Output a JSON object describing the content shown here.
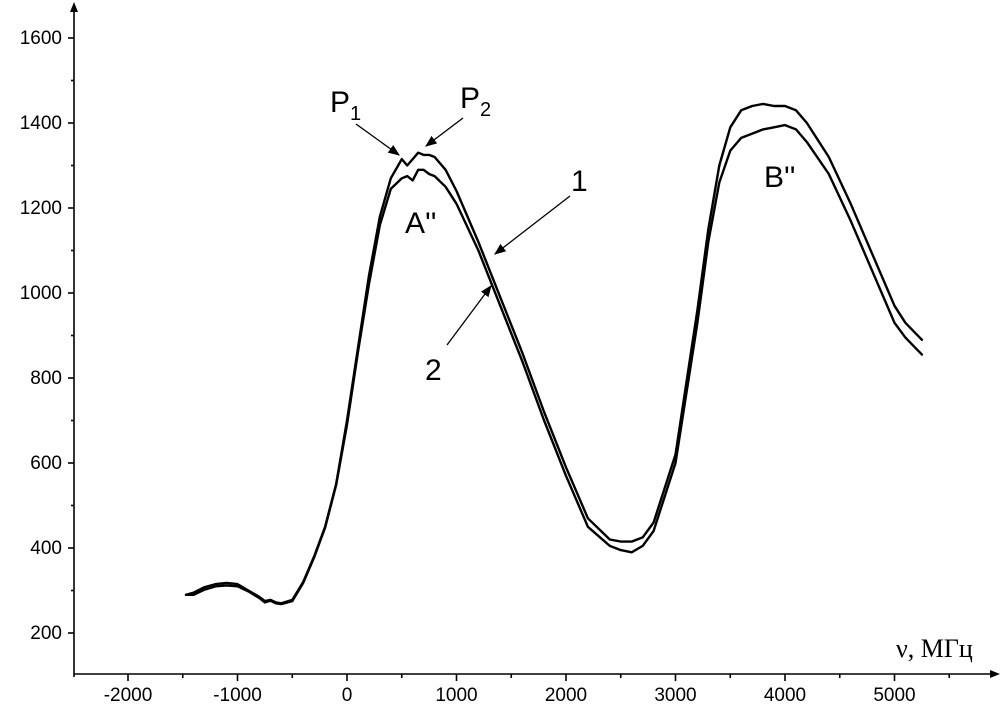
{
  "chart_data": {
    "type": "line",
    "title": "",
    "xlabel": "ν, МГц",
    "ylabel": "",
    "xlim": [
      -2450,
      5950
    ],
    "ylim": [
      105,
      1640
    ],
    "x_ticks": [
      -2000,
      -1000,
      0,
      1000,
      2000,
      3000,
      4000,
      5000
    ],
    "y_ticks": [
      200,
      400,
      600,
      800,
      1000,
      1200,
      1400,
      1600
    ],
    "x_tick_labels": [
      "-2000",
      "-1000",
      "0",
      "1000",
      "2000",
      "3000",
      "4000",
      "5000"
    ],
    "y_tick_labels": [
      "200",
      "400",
      "600",
      "800",
      "1000",
      "1200",
      "1400",
      "1600"
    ],
    "grid": false,
    "series": [
      {
        "name": "1",
        "color": "#000000",
        "x": [
          -1470,
          -1400,
          -1300,
          -1200,
          -1100,
          -1000,
          -900,
          -800,
          -750,
          -700,
          -650,
          -600,
          -500,
          -400,
          -300,
          -200,
          -100,
          0,
          100,
          200,
          300,
          400,
          500,
          550,
          600,
          650,
          700,
          750,
          800,
          900,
          1000,
          1200,
          1400,
          1600,
          1800,
          2000,
          2200,
          2400,
          2500,
          2600,
          2700,
          2800,
          3000,
          3200,
          3300,
          3400,
          3500,
          3600,
          3700,
          3800,
          3900,
          4000,
          4100,
          4200,
          4400,
          4600,
          4800,
          5000,
          5100,
          5250
        ],
        "y": [
          290,
          295,
          308,
          315,
          318,
          315,
          300,
          285,
          275,
          278,
          272,
          270,
          278,
          320,
          380,
          450,
          550,
          700,
          870,
          1040,
          1180,
          1270,
          1315,
          1300,
          1315,
          1330,
          1325,
          1325,
          1320,
          1290,
          1240,
          1120,
          990,
          860,
          720,
          590,
          470,
          420,
          415,
          415,
          425,
          460,
          620,
          960,
          1150,
          1300,
          1390,
          1430,
          1440,
          1445,
          1440,
          1440,
          1430,
          1400,
          1320,
          1210,
          1090,
          970,
          930,
          890
        ]
      },
      {
        "name": "2",
        "color": "#000000",
        "x": [
          -1470,
          -1400,
          -1300,
          -1200,
          -1100,
          -1000,
          -900,
          -800,
          -750,
          -700,
          -650,
          -600,
          -500,
          -400,
          -300,
          -200,
          -100,
          0,
          100,
          200,
          300,
          400,
          500,
          550,
          600,
          650,
          700,
          750,
          800,
          900,
          1000,
          1200,
          1400,
          1600,
          1800,
          2000,
          2200,
          2400,
          2500,
          2600,
          2700,
          2800,
          3000,
          3200,
          3300,
          3400,
          3500,
          3600,
          3700,
          3800,
          3900,
          4000,
          4100,
          4200,
          4400,
          4600,
          4800,
          5000,
          5100,
          5250
        ],
        "y": [
          290,
          290,
          302,
          310,
          312,
          310,
          298,
          282,
          272,
          276,
          270,
          268,
          275,
          318,
          378,
          448,
          548,
          690,
          860,
          1020,
          1160,
          1245,
          1270,
          1275,
          1265,
          1290,
          1290,
          1280,
          1275,
          1250,
          1210,
          1100,
          970,
          840,
          700,
          570,
          450,
          405,
          395,
          390,
          405,
          440,
          600,
          930,
          1120,
          1260,
          1335,
          1365,
          1375,
          1385,
          1390,
          1395,
          1385,
          1355,
          1280,
          1170,
          1050,
          930,
          895,
          855
        ]
      }
    ],
    "annotations": [
      {
        "label": "P",
        "sub": "1",
        "target": [
          520,
          1315
        ]
      },
      {
        "label": "P",
        "sub": "2",
        "target": [
          660,
          1330
        ]
      },
      {
        "label": "A''",
        "sub": "",
        "target": [
          700,
          1275
        ]
      },
      {
        "label": "B''",
        "sub": "",
        "target": [
          4000,
          1395
        ]
      },
      {
        "label": "1",
        "sub": "",
        "target": [
          1320,
          1120
        ]
      },
      {
        "label": "2",
        "sub": "",
        "target": [
          1290,
          1030
        ]
      }
    ]
  }
}
